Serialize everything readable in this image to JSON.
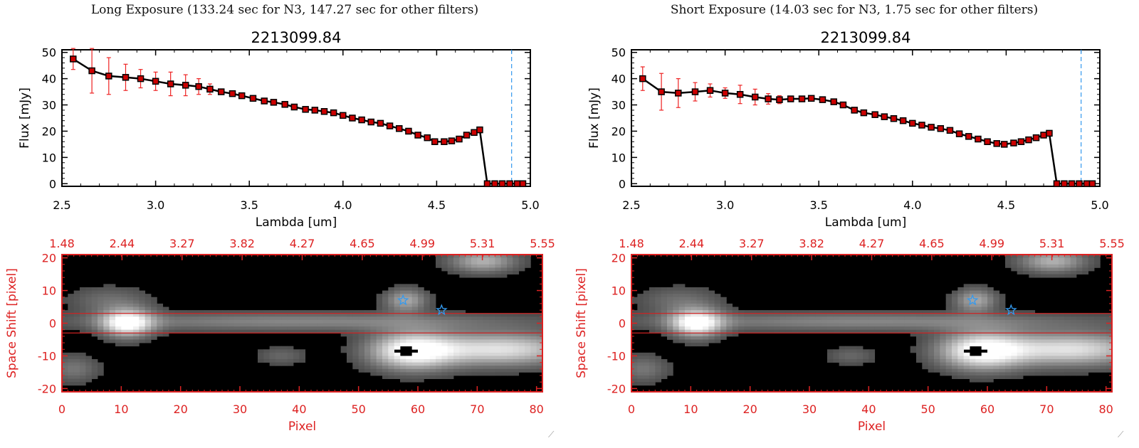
{
  "panels": [
    {
      "exposure_title": "Long Exposure (133.24 sec for N3, 147.27 sec for other filters)",
      "spectrum_title": "2213099.84",
      "resize_grip": "⟋",
      "chart_data": [
        {
          "type": "line",
          "title": "2213099.84",
          "xlabel": "Lambda [um]",
          "ylabel": "Flux [mJy]",
          "xlim": [
            2.5,
            5.0
          ],
          "ylim": [
            -1,
            51
          ],
          "xticks": [
            "2.5",
            "3.0",
            "3.5",
            "4.0",
            "4.5",
            "5.0"
          ],
          "yticks": [
            "0",
            "10",
            "20",
            "30",
            "40",
            "50"
          ],
          "grid": false,
          "series_color": "#000000",
          "marker_color": "#cc0000",
          "errorbar_color": "#ee2222",
          "reference_line_x": 4.9,
          "reference_line_color": "#3399ee",
          "x": [
            2.56,
            2.66,
            2.75,
            2.84,
            2.92,
            3.0,
            3.08,
            3.16,
            3.23,
            3.29,
            3.35,
            3.41,
            3.46,
            3.52,
            3.58,
            3.63,
            3.69,
            3.74,
            3.8,
            3.85,
            3.9,
            3.95,
            4.0,
            4.05,
            4.1,
            4.15,
            4.2,
            4.25,
            4.3,
            4.35,
            4.4,
            4.45,
            4.49,
            4.54,
            4.58,
            4.62,
            4.66,
            4.7,
            4.73,
            4.77,
            4.81,
            4.85,
            4.89,
            4.93,
            4.96
          ],
          "y": [
            47.5,
            43,
            41,
            40.5,
            40,
            39,
            38,
            37.5,
            37,
            36,
            35,
            34.3,
            33.5,
            32.5,
            31.5,
            31,
            30.2,
            29.2,
            28.3,
            28,
            27.5,
            27,
            26,
            25,
            24.3,
            23.5,
            23,
            22,
            21,
            20,
            18.5,
            17.5,
            16,
            16,
            16.3,
            17,
            18.5,
            19.5,
            20.5,
            0,
            0,
            0,
            0,
            0,
            0
          ],
          "yerr": [
            4,
            8.5,
            7,
            5,
            3.5,
            3.5,
            4.5,
            4,
            3,
            2,
            1,
            1,
            0.5,
            0.5,
            0.5,
            0.5,
            0.5,
            0.5,
            0.5,
            0.5,
            0.5,
            0.5,
            0.5,
            0.5,
            0.5,
            0.5,
            0.5,
            0.5,
            0.5,
            0.5,
            0.5,
            0.5,
            0.5,
            0.5,
            0.5,
            0.5,
            0.5,
            0.5,
            0.5,
            0,
            0,
            0,
            0,
            0,
            0
          ]
        },
        {
          "type": "heatmap",
          "xlabel": "Pixel",
          "ylabel": "Space Shift [pixel]",
          "xlim": [
            0,
            81
          ],
          "ylim": [
            -21,
            21
          ],
          "xticks": [
            "0",
            "10",
            "20",
            "30",
            "40",
            "50",
            "60",
            "70",
            "80"
          ],
          "yticks": [
            "-20",
            "-10",
            "0",
            "10",
            "20"
          ],
          "top_axis_ticks": [
            "1.48",
            "2.44",
            "3.27",
            "3.82",
            "4.27",
            "4.65",
            "4.99",
            "5.31",
            "5.55"
          ],
          "axis_color": "#dd2222",
          "aperture_lines_y": [
            3,
            -3
          ],
          "aperture_line_color": "#cc2222",
          "colormap": "grayscale",
          "star_markers": [
            {
              "x": 57.5,
              "y": 7
            },
            {
              "x": 64,
              "y": 4
            }
          ],
          "star_color": "#3399ee",
          "sources": [
            {
              "x": 11,
              "y": 0,
              "sx": 3,
              "sy": 3,
              "amp": 1.0
            },
            {
              "x": 40,
              "y": 0.5,
              "sx": 28,
              "sy": 2,
              "amp": 0.38
            },
            {
              "x": 59,
              "y": -8.5,
              "sx": 5,
              "sy": 4,
              "amp": 1.0
            },
            {
              "x": 74,
              "y": -8,
              "sx": 9,
              "sy": 3.5,
              "amp": 0.85
            },
            {
              "x": 58,
              "y": 7,
              "sx": 2.5,
              "sy": 2.5,
              "amp": 0.55
            },
            {
              "x": 71,
              "y": 19,
              "sx": 4,
              "sy": 2.5,
              "amp": 0.6
            },
            {
              "x": 2,
              "y": -14,
              "sx": 3,
              "sy": 3,
              "amp": 0.3
            },
            {
              "x": 8,
              "y": 7,
              "sx": 5,
              "sy": 3,
              "amp": 0.25
            },
            {
              "x": 37,
              "y": -10,
              "sx": 3,
              "sy": 2,
              "amp": 0.22
            }
          ],
          "saturated_blobs": [
            {
              "x": 58,
              "y": -8.5,
              "sx": 1.8,
              "sy": 1.3
            }
          ]
        }
      ]
    },
    {
      "exposure_title": "Short Exposure (14.03 sec for N3, 1.75 sec for other filters)",
      "spectrum_title": "2213099.84",
      "resize_grip": "⟋",
      "chart_data": [
        {
          "type": "line",
          "title": "2213099.84",
          "xlabel": "Lambda [um]",
          "ylabel": "Flux [mJy]",
          "xlim": [
            2.5,
            5.0
          ],
          "ylim": [
            -1,
            51
          ],
          "xticks": [
            "2.5",
            "3.0",
            "3.5",
            "4.0",
            "4.5",
            "5.0"
          ],
          "yticks": [
            "0",
            "10",
            "20",
            "30",
            "40",
            "50"
          ],
          "grid": false,
          "series_color": "#000000",
          "marker_color": "#cc0000",
          "errorbar_color": "#ee2222",
          "reference_line_x": 4.9,
          "reference_line_color": "#3399ee",
          "x": [
            2.56,
            2.66,
            2.75,
            2.84,
            2.92,
            3.0,
            3.08,
            3.16,
            3.23,
            3.29,
            3.35,
            3.41,
            3.46,
            3.52,
            3.58,
            3.63,
            3.69,
            3.74,
            3.8,
            3.85,
            3.9,
            3.95,
            4.0,
            4.05,
            4.1,
            4.15,
            4.2,
            4.25,
            4.3,
            4.35,
            4.4,
            4.45,
            4.49,
            4.54,
            4.58,
            4.62,
            4.66,
            4.7,
            4.73,
            4.77,
            4.81,
            4.85,
            4.89,
            4.93,
            4.96
          ],
          "y": [
            40,
            35,
            34.5,
            35,
            35.5,
            34.5,
            34,
            33,
            32.3,
            32,
            32.3,
            32.3,
            32.5,
            32,
            31.2,
            30,
            28,
            27,
            26.3,
            25.5,
            24.8,
            24,
            23,
            22.3,
            21.5,
            21,
            20.3,
            19,
            18,
            17,
            16,
            15.3,
            15,
            15.5,
            16,
            16.7,
            17.5,
            18.5,
            19.2,
            0,
            0,
            0,
            0,
            0,
            0
          ],
          "yerr": [
            4.5,
            7,
            5.5,
            3.5,
            2.5,
            2,
            3.5,
            3,
            2,
            1.5,
            1,
            0.5,
            0.5,
            0.5,
            0.5,
            0.5,
            0.5,
            0.5,
            0.5,
            0.5,
            0.5,
            0.5,
            0.5,
            0.5,
            0.5,
            0.5,
            0.5,
            0.5,
            0.5,
            0.5,
            0.5,
            0.5,
            0.5,
            0.5,
            0.5,
            0.5,
            0.5,
            0.5,
            0.5,
            0,
            0,
            0,
            0,
            0,
            0
          ]
        },
        {
          "type": "heatmap",
          "xlabel": "Pixel",
          "ylabel": "Space Shift [pixel]",
          "xlim": [
            0,
            81
          ],
          "ylim": [
            -21,
            21
          ],
          "xticks": [
            "0",
            "10",
            "20",
            "30",
            "40",
            "50",
            "60",
            "70",
            "80"
          ],
          "yticks": [
            "-20",
            "-10",
            "0",
            "10",
            "20"
          ],
          "top_axis_ticks": [
            "1.48",
            "2.44",
            "3.27",
            "3.82",
            "4.27",
            "4.65",
            "4.99",
            "5.31",
            "5.55"
          ],
          "axis_color": "#dd2222",
          "aperture_lines_y": [
            3,
            -3
          ],
          "aperture_line_color": "#cc2222",
          "colormap": "grayscale",
          "star_markers": [
            {
              "x": 57.5,
              "y": 7
            },
            {
              "x": 64,
              "y": 4
            }
          ],
          "star_color": "#3399ee",
          "sources": [
            {
              "x": 11,
              "y": 0,
              "sx": 3,
              "sy": 3,
              "amp": 1.0
            },
            {
              "x": 40,
              "y": 0.5,
              "sx": 28,
              "sy": 2,
              "amp": 0.38
            },
            {
              "x": 59,
              "y": -8.5,
              "sx": 5,
              "sy": 4,
              "amp": 1.0
            },
            {
              "x": 74,
              "y": -8,
              "sx": 9,
              "sy": 3.5,
              "amp": 0.85
            },
            {
              "x": 58,
              "y": 7,
              "sx": 2.5,
              "sy": 2.5,
              "amp": 0.55
            },
            {
              "x": 71,
              "y": 19,
              "sx": 4,
              "sy": 2.5,
              "amp": 0.6
            },
            {
              "x": 2,
              "y": -14,
              "sx": 3,
              "sy": 3,
              "amp": 0.3
            },
            {
              "x": 8,
              "y": 7,
              "sx": 5,
              "sy": 3,
              "amp": 0.25
            },
            {
              "x": 37,
              "y": -10,
              "sx": 3,
              "sy": 2,
              "amp": 0.22
            }
          ],
          "saturated_blobs": [
            {
              "x": 58,
              "y": -8.5,
              "sx": 1.8,
              "sy": 1.3
            }
          ]
        }
      ]
    }
  ]
}
